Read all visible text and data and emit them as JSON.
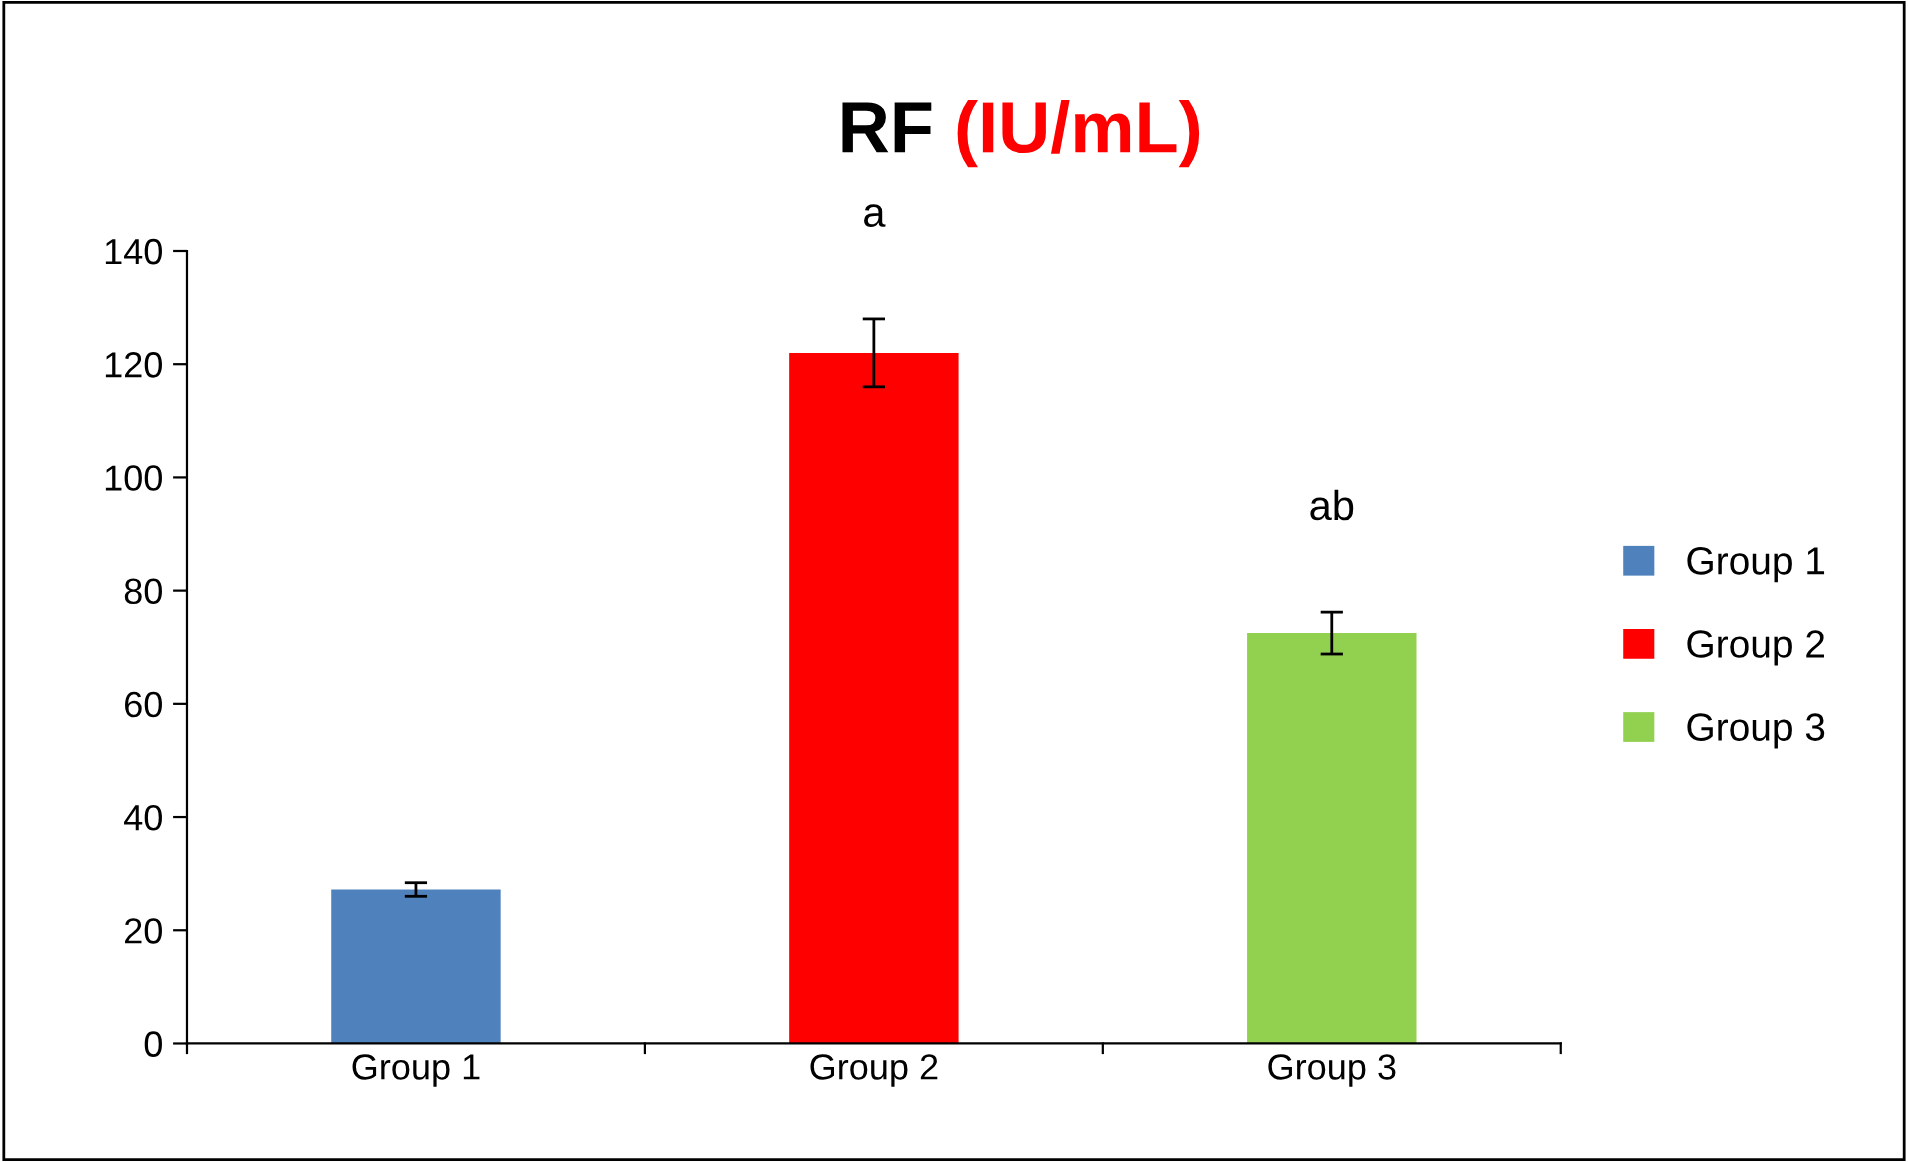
{
  "chart_data": {
    "type": "bar",
    "title": "RF (IU/mL)",
    "categories": [
      "Group 1",
      "Group 2",
      "Group 3"
    ],
    "series": [
      {
        "name": "Group 1",
        "color": "#4f81bd",
        "values": [
          27.2,
          null,
          null
        ],
        "errors": [
          1.2,
          null,
          null
        ]
      },
      {
        "name": "Group 2",
        "color": "#ff0000",
        "values": [
          null,
          122,
          null
        ],
        "errors": [
          null,
          6,
          null
        ]
      },
      {
        "name": "Group 3",
        "color": "#92d050",
        "values": [
          null,
          null,
          72.5
        ],
        "errors": [
          null,
          null,
          3.7
        ]
      }
    ],
    "ylim": [
      0,
      140
    ],
    "yticks": [
      0,
      20,
      40,
      60,
      80,
      100,
      120,
      140
    ],
    "annotations": [
      "a",
      "ab"
    ],
    "legend": "right",
    "grid": false
  }
}
